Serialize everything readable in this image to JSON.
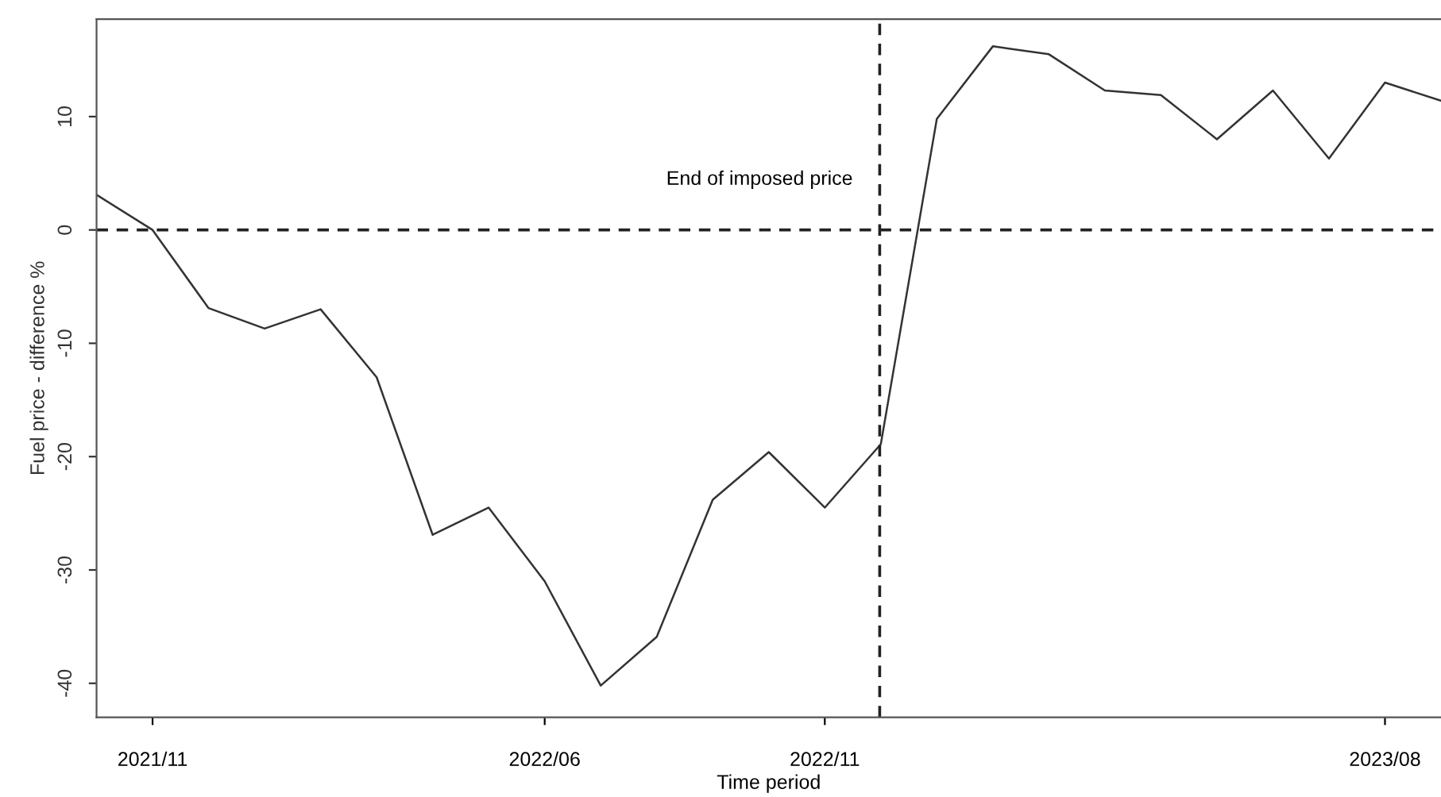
{
  "chart_data": {
    "type": "line",
    "xlabel": "Time period",
    "ylabel": "Fuel price - difference %",
    "categories": [
      null,
      "2021/11",
      null,
      null,
      null,
      null,
      null,
      null,
      "2022/06",
      null,
      null,
      null,
      null,
      "2022/11",
      null,
      null,
      null,
      null,
      null,
      null,
      null,
      null,
      null,
      "2023/08",
      null
    ],
    "series": [
      {
        "color": "#333333",
        "values": [
          3.1,
          0,
          -6.9,
          -8.7,
          -7.0,
          -13.0,
          -26.9,
          -24.5,
          -31.0,
          -40.2,
          -35.9,
          -23.8,
          -19.6,
          -24.5,
          -18.9,
          9.8,
          16.2,
          15.5,
          12.3,
          11.9,
          8.0,
          12.3,
          6.3,
          13.0,
          11.4
        ]
      }
    ],
    "ylim": [
      -43,
      18.6
    ],
    "yticks": [
      -40,
      -30,
      -20,
      -10,
      0,
      10
    ],
    "ref_lines": [
      {
        "axis": "y",
        "value": 0,
        "line_style": "dashed",
        "color": "#222222"
      }
    ],
    "annotations": [
      "End of imposed price"
    ],
    "legend": false,
    "marker": "none",
    "line_style": "solid"
  }
}
